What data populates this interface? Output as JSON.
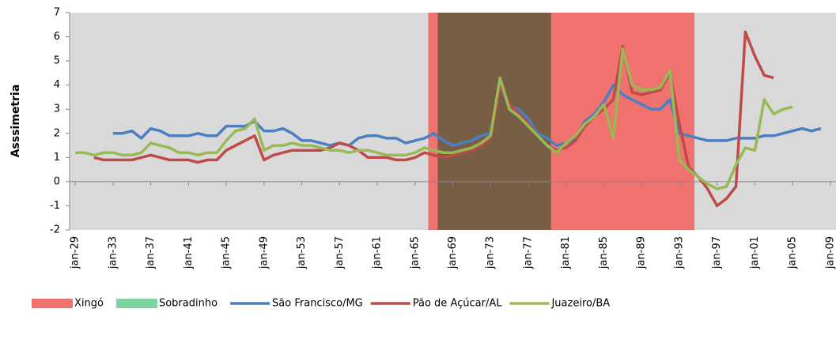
{
  "chart_data": {
    "type": "line",
    "y_label": "Asssimetria",
    "ylim": [
      -2,
      7
    ],
    "yticks": [
      -2,
      -1,
      0,
      1,
      2,
      3,
      4,
      5,
      6,
      7
    ],
    "xlim": [
      1928.4,
      2009.6
    ],
    "xticks": [
      {
        "value": 1929,
        "label": "jan-29"
      },
      {
        "value": 1933,
        "label": "jan-33"
      },
      {
        "value": 1937,
        "label": "jan-37"
      },
      {
        "value": 1941,
        "label": "jan-41"
      },
      {
        "value": 1945,
        "label": "jan-45"
      },
      {
        "value": 1949,
        "label": "jan-49"
      },
      {
        "value": 1953,
        "label": "jan-53"
      },
      {
        "value": 1957,
        "label": "jan-57"
      },
      {
        "value": 1961,
        "label": "jan-61"
      },
      {
        "value": 1965,
        "label": "jan-65"
      },
      {
        "value": 1969,
        "label": "jan-69"
      },
      {
        "value": 1973,
        "label": "jan-73"
      },
      {
        "value": 1977,
        "label": "jan-77"
      },
      {
        "value": 1981,
        "label": "jan-81"
      },
      {
        "value": 1985,
        "label": "jan-85"
      },
      {
        "value": 1989,
        "label": "jan-89"
      },
      {
        "value": 1993,
        "label": "jan-93"
      },
      {
        "value": 1997,
        "label": "jan-97"
      },
      {
        "value": 2001,
        "label": "jan-01"
      },
      {
        "value": 2005,
        "label": "jan-05"
      },
      {
        "value": 2009,
        "label": "jan-09"
      }
    ],
    "plot_background": "#d9d9d9",
    "regions": [
      {
        "name": "Xingó",
        "color": "#f0726e",
        "range": [
          1966.4,
          1994.6
        ]
      },
      {
        "name": "Sobradinho",
        "color": "#7fd3a0",
        "range": [
          1967.4,
          1979.4
        ]
      }
    ],
    "x": [
      1929,
      1930,
      1931,
      1932,
      1933,
      1934,
      1935,
      1936,
      1937,
      1938,
      1939,
      1940,
      1941,
      1942,
      1943,
      1944,
      1945,
      1946,
      1947,
      1948,
      1949,
      1950,
      1951,
      1952,
      1953,
      1954,
      1955,
      1956,
      1957,
      1958,
      1959,
      1960,
      1961,
      1962,
      1963,
      1964,
      1965,
      1966,
      1967,
      1968,
      1969,
      1970,
      1971,
      1972,
      1973,
      1974,
      1975,
      1976,
      1977,
      1978,
      1979,
      1980,
      1981,
      1982,
      1983,
      1984,
      1985,
      1986,
      1987,
      1988,
      1989,
      1990,
      1991,
      1992,
      1993,
      1994,
      1995,
      1996,
      1997,
      1998,
      1999,
      2000,
      2001,
      2002,
      2003,
      2004,
      2005,
      2006,
      2007,
      2008
    ],
    "series": [
      {
        "name": "São Francisco/MG",
        "color": "#4a7fc1",
        "values": [
          null,
          null,
          null,
          null,
          2.0,
          2.0,
          2.1,
          1.8,
          2.2,
          2.1,
          1.9,
          1.9,
          1.9,
          2.0,
          1.9,
          1.9,
          2.3,
          2.3,
          2.3,
          2.5,
          2.1,
          2.1,
          2.2,
          2.0,
          1.7,
          1.7,
          1.6,
          1.5,
          1.6,
          1.5,
          1.8,
          1.9,
          1.9,
          1.8,
          1.8,
          1.6,
          1.7,
          1.8,
          2.0,
          1.7,
          1.5,
          1.6,
          1.7,
          1.9,
          2.0,
          4.0,
          3.1,
          3.0,
          2.6,
          2.0,
          1.8,
          1.5,
          1.6,
          1.8,
          2.5,
          2.8,
          3.3,
          4.0,
          3.6,
          3.4,
          3.2,
          3.0,
          3.0,
          3.4,
          2.0,
          1.9,
          1.8,
          1.7,
          1.7,
          1.7,
          1.8,
          1.8,
          1.8,
          1.9,
          1.9,
          2.0,
          2.1,
          2.2,
          2.1,
          2.2
        ]
      },
      {
        "name": "Pão de Açúcar/AL",
        "color": "#be4b48",
        "values": [
          null,
          null,
          1.0,
          0.9,
          0.9,
          0.9,
          0.9,
          1.0,
          1.1,
          1.0,
          0.9,
          0.9,
          0.9,
          0.8,
          0.9,
          0.9,
          1.3,
          1.5,
          1.7,
          1.9,
          0.9,
          1.1,
          1.2,
          1.3,
          1.3,
          1.3,
          1.3,
          1.4,
          1.6,
          1.5,
          1.3,
          1.0,
          1.0,
          1.0,
          0.9,
          0.9,
          1.0,
          1.2,
          1.1,
          1.0,
          1.1,
          1.2,
          1.3,
          1.5,
          1.8,
          4.0,
          3.2,
          2.8,
          2.4,
          1.9,
          1.5,
          1.3,
          1.4,
          1.7,
          2.3,
          2.7,
          3.0,
          3.4,
          5.6,
          3.7,
          3.6,
          3.7,
          3.8,
          4.5,
          2.4,
          0.6,
          0.2,
          -0.3,
          -1.0,
          -0.7,
          -0.2,
          6.2,
          5.2,
          4.4,
          4.3,
          null,
          null,
          null,
          null,
          null
        ]
      },
      {
        "name": "Juazeiro/BA",
        "color": "#98b954",
        "values": [
          1.2,
          1.2,
          1.1,
          1.2,
          1.2,
          1.1,
          1.1,
          1.2,
          1.6,
          1.5,
          1.4,
          1.2,
          1.2,
          1.1,
          1.2,
          1.2,
          1.7,
          2.1,
          2.2,
          2.6,
          1.3,
          1.5,
          1.5,
          1.6,
          1.5,
          1.5,
          1.4,
          1.3,
          1.3,
          1.2,
          1.3,
          1.3,
          1.2,
          1.1,
          1.1,
          1.1,
          1.2,
          1.4,
          1.3,
          1.2,
          1.2,
          1.3,
          1.4,
          1.6,
          1.9,
          4.3,
          3.0,
          2.7,
          2.3,
          1.9,
          1.5,
          1.2,
          1.6,
          1.9,
          2.4,
          2.7,
          3.2,
          1.8,
          5.5,
          4.0,
          3.8,
          3.8,
          3.9,
          4.6,
          0.9,
          0.5,
          0.2,
          -0.1,
          -0.3,
          -0.2,
          0.7,
          1.4,
          1.3,
          3.4,
          2.8,
          3.0,
          3.1,
          null,
          null,
          null
        ]
      }
    ]
  }
}
